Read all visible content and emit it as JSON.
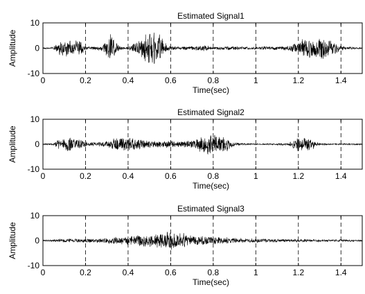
{
  "chart_data": [
    {
      "type": "line",
      "title": "Estimated Signal1",
      "xlabel": "Time(sec)",
      "ylabel": "Amplitude",
      "xlim": [
        0,
        1.5
      ],
      "ylim": [
        -10,
        10
      ],
      "x_ticks": [
        "0",
        "0.2",
        "0.4",
        "0.6",
        "0.8",
        "1",
        "1.2",
        "1.4"
      ],
      "y_ticks": [
        "10",
        "0",
        "-10"
      ],
      "grid": "vertical dashed at x ticks",
      "envelope": {
        "x": [
          0,
          0.05,
          0.07,
          0.1,
          0.14,
          0.18,
          0.2,
          0.25,
          0.28,
          0.3,
          0.32,
          0.34,
          0.37,
          0.4,
          0.43,
          0.46,
          0.49,
          0.52,
          0.55,
          0.57,
          0.6,
          0.65,
          0.7,
          0.75,
          0.78,
          0.8,
          0.85,
          0.9,
          0.95,
          1.0,
          1.05,
          1.1,
          1.15,
          1.2,
          1.22,
          1.25,
          1.28,
          1.3,
          1.33,
          1.36,
          1.4,
          1.45,
          1.5
        ],
        "amplitude": [
          0.3,
          0.5,
          3.0,
          4.0,
          3.5,
          3.0,
          0.8,
          0.8,
          1.5,
          4.0,
          6.0,
          3.0,
          0.6,
          0.6,
          2.5,
          4.0,
          6.5,
          8.0,
          6.0,
          2.5,
          0.8,
          0.7,
          0.8,
          1.5,
          1.0,
          0.5,
          0.8,
          0.8,
          0.6,
          0.5,
          0.8,
          0.8,
          1.0,
          2.5,
          4.0,
          4.0,
          4.5,
          5.0,
          4.5,
          3.0,
          1.0,
          0.5,
          0.3
        ]
      }
    },
    {
      "type": "line",
      "title": "Estimated Signal2",
      "xlabel": "Time(sec)",
      "ylabel": "Amplitude",
      "xlim": [
        0,
        1.5
      ],
      "ylim": [
        -10,
        10
      ],
      "x_ticks": [
        "0",
        "0.2",
        "0.4",
        "0.6",
        "0.8",
        "1",
        "1.2",
        "1.4"
      ],
      "y_ticks": [
        "10",
        "0",
        "-10"
      ],
      "grid": "vertical dashed at x ticks",
      "envelope": {
        "x": [
          0,
          0.05,
          0.07,
          0.12,
          0.17,
          0.2,
          0.25,
          0.3,
          0.35,
          0.4,
          0.45,
          0.5,
          0.55,
          0.6,
          0.65,
          0.7,
          0.75,
          0.78,
          0.8,
          0.83,
          0.86,
          0.88,
          0.9,
          0.95,
          1.0,
          1.05,
          1.1,
          1.15,
          1.18,
          1.2,
          1.24,
          1.27,
          1.3,
          1.35,
          1.4,
          1.45,
          1.5
        ],
        "amplitude": [
          0.3,
          0.4,
          2.5,
          3.0,
          2.5,
          1.2,
          0.8,
          1.5,
          3.0,
          3.2,
          2.5,
          1.5,
          1.5,
          1.6,
          1.2,
          2.0,
          3.5,
          4.5,
          5.0,
          4.0,
          3.5,
          2.0,
          0.8,
          0.4,
          0.3,
          0.3,
          0.4,
          0.5,
          2.5,
          3.0,
          3.0,
          2.0,
          0.5,
          0.3,
          0.3,
          0.3,
          0.3
        ]
      }
    },
    {
      "type": "line",
      "title": "Estimated Signal3",
      "xlabel": "Time(sec)",
      "ylabel": "Amplitude",
      "xlim": [
        0,
        1.5
      ],
      "ylim": [
        -10,
        10
      ],
      "x_ticks": [
        "0",
        "0.2",
        "0.4",
        "0.6",
        "0.8",
        "1",
        "1.2",
        "1.4"
      ],
      "y_ticks": [
        "10",
        "0",
        "-10"
      ],
      "grid": "vertical dashed at x ticks",
      "envelope": {
        "x": [
          0,
          0.05,
          0.1,
          0.15,
          0.2,
          0.25,
          0.3,
          0.35,
          0.4,
          0.45,
          0.5,
          0.55,
          0.6,
          0.63,
          0.66,
          0.7,
          0.75,
          0.8,
          0.85,
          0.9,
          0.95,
          1.0,
          1.05,
          1.1,
          1.15,
          1.2,
          1.25,
          1.3,
          1.35,
          1.4,
          1.45,
          1.5
        ],
        "amplitude": [
          0.3,
          0.5,
          0.8,
          0.8,
          0.8,
          0.9,
          1.2,
          1.8,
          2.0,
          2.5,
          3.0,
          3.5,
          4.0,
          4.0,
          3.5,
          2.5,
          2.0,
          1.8,
          1.5,
          1.2,
          1.0,
          0.8,
          0.8,
          0.8,
          0.6,
          0.6,
          0.6,
          0.5,
          0.5,
          0.5,
          0.4,
          0.3
        ]
      }
    }
  ]
}
